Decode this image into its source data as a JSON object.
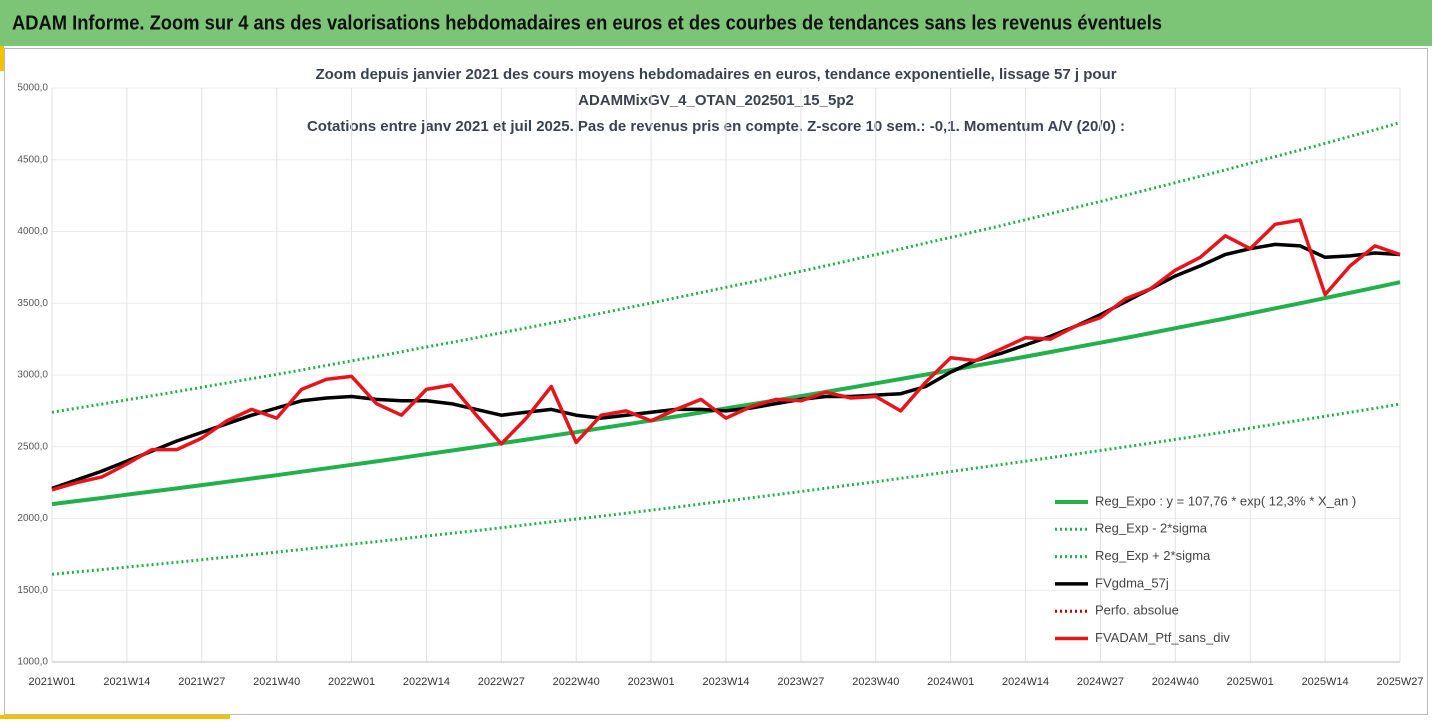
{
  "header": {
    "title": "ADAM Informe. Zoom sur 4 ans des valorisations hebdomadaires en euros et des courbes de tendances sans les revenus éventuels"
  },
  "chart_data": {
    "type": "line",
    "title": [
      "Zoom depuis janvier 2021 des cours moyens hebdomadaires  en euros, tendance exponentielle, lissage 57 j pour",
      "ADAMMixGV_4_OTAN_202501_15_5p2",
      "Cotations entre janv 2021 et juil 2025. Pas de revenus pris en compte. Z-score 10 sem.: -0,1. Momentum A/V (20/0) :"
    ],
    "categories": [
      "2021W01",
      null,
      null,
      "2021W14",
      null,
      null,
      "2021W27",
      null,
      null,
      "2021W40",
      null,
      null,
      "2022W01",
      null,
      null,
      "2022W14",
      null,
      null,
      "2022W27",
      null,
      null,
      "2022W40",
      null,
      null,
      "2023W01",
      null,
      null,
      "2023W14",
      null,
      null,
      "2023W27",
      null,
      null,
      "2023W40",
      null,
      null,
      "2024W01",
      null,
      null,
      "2024W14",
      null,
      null,
      "2024W27",
      null,
      null,
      "2024W40",
      null,
      null,
      "2025W01",
      null,
      null,
      "2025W14",
      null,
      null,
      "2025W27"
    ],
    "ylim": [
      1000,
      5000
    ],
    "yticks": [
      {
        "value": 1000,
        "label": "1000,0"
      },
      {
        "value": 1500,
        "label": "1500,0"
      },
      {
        "value": 2000,
        "label": "2000,0"
      },
      {
        "value": 2500,
        "label": "2500,0"
      },
      {
        "value": 3000,
        "label": "3000,0"
      },
      {
        "value": 3500,
        "label": "3500,0"
      },
      {
        "value": 4000,
        "label": "4000,0"
      },
      {
        "value": 4500,
        "label": "4500,0"
      },
      {
        "value": 5000,
        "label": "5000,0"
      }
    ],
    "grid": true,
    "series": [
      {
        "name": "Reg_Expo : y = 107,76 * exp( 12,3% *  X_an )",
        "color": "#22b04a",
        "style": "solid",
        "values": [
          2100,
          2122,
          2143,
          2166,
          2188,
          2210,
          2233,
          2256,
          2279,
          2302,
          2326,
          2350,
          2374,
          2398,
          2423,
          2448,
          2473,
          2498,
          2524,
          2550,
          2576,
          2602,
          2629,
          2656,
          2683,
          2711,
          2739,
          2767,
          2795,
          2824,
          2853,
          2882,
          2912,
          2942,
          2972,
          3003,
          3034,
          3065,
          3096,
          3128,
          3160,
          3193,
          3225,
          3258,
          3292,
          3326,
          3360,
          3394,
          3429,
          3465,
          3500,
          3536,
          3573,
          3609,
          3647
        ]
      },
      {
        "name": "Reg_Exp - 2*sigma",
        "color": "#22b04a",
        "style": "dotted",
        "values": [
          1611,
          1628,
          1644,
          1661,
          1678,
          1695,
          1713,
          1730,
          1748,
          1766,
          1784,
          1802,
          1821,
          1839,
          1858,
          1878,
          1897,
          1916,
          1936,
          1956,
          1976,
          1996,
          2016,
          2037,
          2058,
          2079,
          2101,
          2122,
          2144,
          2166,
          2188,
          2211,
          2234,
          2256,
          2280,
          2303,
          2327,
          2351,
          2375,
          2399,
          2424,
          2449,
          2474,
          2499,
          2525,
          2551,
          2577,
          2603,
          2630,
          2658,
          2685,
          2712,
          2740,
          2768,
          2797
        ]
      },
      {
        "name": "Reg_Exp + 2*sigma",
        "color": "#22b04a",
        "style": "dotted",
        "values": [
          2740,
          2769,
          2797,
          2827,
          2855,
          2884,
          2914,
          2944,
          2974,
          3004,
          3035,
          3067,
          3098,
          3129,
          3162,
          3195,
          3227,
          3260,
          3294,
          3328,
          3362,
          3396,
          3431,
          3466,
          3501,
          3538,
          3574,
          3611,
          3647,
          3685,
          3723,
          3761,
          3800,
          3839,
          3878,
          3919,
          3959,
          4000,
          4040,
          4082,
          4124,
          4167,
          4209,
          4252,
          4296,
          4340,
          4385,
          4429,
          4475,
          4522,
          4568,
          4614,
          4663,
          4709,
          4759
        ]
      },
      {
        "name": "FVgdma_57j",
        "color": "#000000",
        "style": "solid",
        "values": [
          2210,
          2270,
          2330,
          2400,
          2470,
          2540,
          2600,
          2660,
          2720,
          2770,
          2820,
          2840,
          2850,
          2830,
          2820,
          2820,
          2800,
          2760,
          2720,
          2740,
          2760,
          2720,
          2700,
          2720,
          2740,
          2760,
          2760,
          2750,
          2770,
          2800,
          2830,
          2850,
          2850,
          2860,
          2870,
          2920,
          3020,
          3100,
          3150,
          3210,
          3270,
          3340,
          3420,
          3510,
          3600,
          3690,
          3760,
          3840,
          3880,
          3910,
          3900,
          3820,
          3830,
          3850,
          3840
        ]
      },
      {
        "name": "Perfo. absolue",
        "color": "#c00000",
        "style": "dotted",
        "values": [
          null,
          null,
          null,
          null,
          null,
          null,
          null,
          null,
          null,
          null,
          null,
          null,
          null,
          null,
          null,
          null,
          null,
          null,
          null,
          null,
          null,
          null,
          null,
          null,
          null,
          null,
          null,
          null,
          null,
          null,
          null,
          null,
          null,
          null,
          null,
          null,
          null,
          null,
          null,
          null,
          null,
          null,
          null,
          null,
          null,
          null,
          null,
          null,
          null,
          null,
          null,
          null,
          null,
          null,
          null
        ]
      },
      {
        "name": "FVADAM_Ptf_sans_div",
        "color": "#e8141b",
        "style": "solid",
        "values": [
          2200,
          2250,
          2290,
          2380,
          2480,
          2480,
          2560,
          2680,
          2760,
          2700,
          2900,
          2970,
          2990,
          2800,
          2720,
          2900,
          2930,
          2720,
          2520,
          2700,
          2920,
          2530,
          2720,
          2750,
          2680,
          2760,
          2830,
          2700,
          2780,
          2830,
          2820,
          2880,
          2840,
          2850,
          2750,
          2950,
          3120,
          3100,
          3180,
          3260,
          3250,
          3340,
          3400,
          3530,
          3600,
          3730,
          3820,
          3970,
          3880,
          4050,
          4080,
          3560,
          3760,
          3900,
          3840
        ]
      }
    ]
  }
}
